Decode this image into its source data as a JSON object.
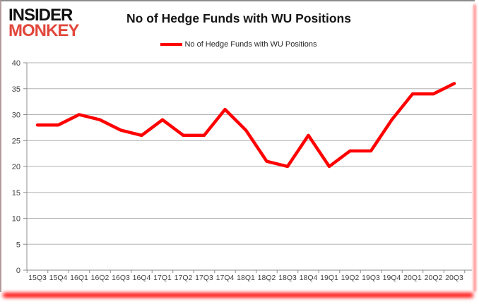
{
  "brand": {
    "line1": "INSIDER",
    "line2": "MONKEY"
  },
  "header": {
    "title": "No of Hedge Funds with WU Positions"
  },
  "legend": {
    "label": "No of Hedge Funds with WU Positions",
    "marker_color": "#ff0000"
  },
  "colors": {
    "series_line": "#ff0000",
    "logo_red": "#e2473b",
    "grid": "#b3b3b3",
    "axis": "#8c8c8c",
    "tick_label": "#3f3f3f",
    "shadow": "#ff0f0f"
  },
  "chart_data": {
    "type": "line",
    "title": "No of Hedge Funds with WU Positions",
    "categories": [
      "15Q3",
      "15Q4",
      "16Q1",
      "16Q2",
      "16Q3",
      "16Q4",
      "17Q1",
      "17Q2",
      "17Q3",
      "17Q4",
      "18Q1",
      "18Q2",
      "18Q3",
      "18Q4",
      "19Q1",
      "19Q2",
      "19Q3",
      "19Q4",
      "20Q1",
      "20Q2",
      "20Q3"
    ],
    "series": [
      {
        "name": "No of Hedge Funds with WU Positions",
        "color": "#ff0000",
        "values": [
          28,
          28,
          30,
          29,
          27,
          26,
          29,
          26,
          26,
          31,
          27,
          21,
          20,
          26,
          20,
          23,
          23,
          29,
          34,
          34,
          36
        ]
      }
    ],
    "xlabel": "",
    "ylabel": "",
    "ylim": [
      0,
      40
    ],
    "ytick_step": 5,
    "grid": true,
    "legend_position": "top"
  }
}
